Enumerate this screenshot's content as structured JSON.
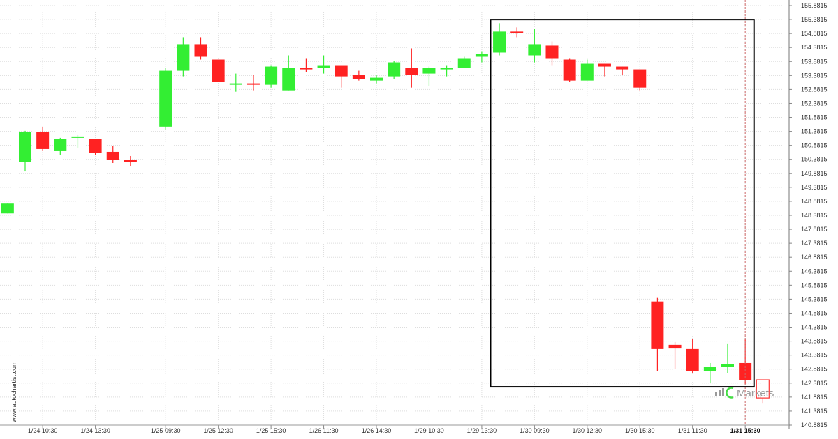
{
  "watermark": "www.autochartist.com",
  "logo": {
    "text": "Markets",
    "color": "#9a9a9a",
    "accent": "#44dd44"
  },
  "colors": {
    "up": "#33ee33",
    "down": "#ff2222",
    "grid": "#dddddd",
    "pattern": "#000000",
    "projection": "#ff3333"
  },
  "chart_data": {
    "type": "candlestick",
    "title": "",
    "xlabel": "",
    "ylabel": "",
    "ylim": [
      140.8815,
      155.8815
    ],
    "y_ticks": [
      "155.8815",
      "155.3815",
      "154.8815",
      "154.3815",
      "153.8815",
      "153.3815",
      "152.8815",
      "152.3815",
      "151.8815",
      "151.3815",
      "150.8815",
      "150.3815",
      "149.8815",
      "149.3815",
      "148.8815",
      "148.3815",
      "147.8815",
      "147.3815",
      "146.8815",
      "146.3815",
      "145.8815",
      "145.3815",
      "144.8815",
      "144.3815",
      "143.8815",
      "143.3815",
      "142.8815",
      "142.3815",
      "141.8815",
      "141.3815",
      "140.8815"
    ],
    "x_ticks": [
      {
        "label": "1/24 10:30",
        "index": 1
      },
      {
        "label": "1/24 13:30",
        "index": 4
      },
      {
        "label": "1/25 09:30",
        "index": 8
      },
      {
        "label": "1/25 12:30",
        "index": 11
      },
      {
        "label": "1/25 15:30",
        "index": 14
      },
      {
        "label": "1/26 11:30",
        "index": 17
      },
      {
        "label": "1/26 14:30",
        "index": 20
      },
      {
        "label": "1/29 10:30",
        "index": 23
      },
      {
        "label": "1/29 13:30",
        "index": 26
      },
      {
        "label": "1/30 09:30",
        "index": 29
      },
      {
        "label": "1/30 12:30",
        "index": 32
      },
      {
        "label": "1/30 15:30",
        "index": 35
      },
      {
        "label": "1/31 11:30",
        "index": 38
      },
      {
        "label": "1/31 15:30",
        "index": 41,
        "active": true
      }
    ],
    "candles": [
      {
        "index": -1,
        "o": 148.45,
        "h": 148.8,
        "l": 148.45,
        "c": 148.8
      },
      {
        "index": 0,
        "o": 150.3,
        "h": 151.4,
        "l": 149.95,
        "c": 151.35
      },
      {
        "index": 1,
        "o": 151.35,
        "h": 151.55,
        "l": 150.7,
        "c": 150.75
      },
      {
        "index": 2,
        "o": 150.7,
        "h": 151.15,
        "l": 150.55,
        "c": 151.1
      },
      {
        "index": 3,
        "o": 151.15,
        "h": 151.25,
        "l": 150.8,
        "c": 151.2
      },
      {
        "index": 4,
        "o": 151.1,
        "h": 151.1,
        "l": 150.55,
        "c": 150.6
      },
      {
        "index": 5,
        "o": 150.65,
        "h": 150.85,
        "l": 150.25,
        "c": 150.35
      },
      {
        "index": 6,
        "o": 150.35,
        "h": 150.5,
        "l": 150.15,
        "c": 150.32
      },
      {
        "index": 8,
        "o": 151.55,
        "h": 153.65,
        "l": 151.45,
        "c": 153.55
      },
      {
        "index": 9,
        "o": 153.55,
        "h": 154.75,
        "l": 153.35,
        "c": 154.5
      },
      {
        "index": 10,
        "o": 154.5,
        "h": 154.75,
        "l": 153.95,
        "c": 154.05
      },
      {
        "index": 11,
        "o": 153.95,
        "h": 153.95,
        "l": 153.15,
        "c": 153.15
      },
      {
        "index": 12,
        "o": 153.05,
        "h": 153.45,
        "l": 152.8,
        "c": 153.1
      },
      {
        "index": 13,
        "o": 153.1,
        "h": 153.4,
        "l": 152.85,
        "c": 153.05
      },
      {
        "index": 14,
        "o": 153.05,
        "h": 153.75,
        "l": 152.95,
        "c": 153.7
      },
      {
        "index": 15,
        "o": 152.85,
        "h": 154.1,
        "l": 152.85,
        "c": 153.65
      },
      {
        "index": 16,
        "o": 153.65,
        "h": 154.0,
        "l": 153.5,
        "c": 153.6
      },
      {
        "index": 17,
        "o": 153.65,
        "h": 154.1,
        "l": 153.45,
        "c": 153.75
      },
      {
        "index": 18,
        "o": 153.75,
        "h": 153.75,
        "l": 152.95,
        "c": 153.35
      },
      {
        "index": 19,
        "o": 153.4,
        "h": 153.55,
        "l": 153.2,
        "c": 153.25
      },
      {
        "index": 20,
        "o": 153.2,
        "h": 153.4,
        "l": 153.1,
        "c": 153.3
      },
      {
        "index": 21,
        "o": 153.35,
        "h": 153.9,
        "l": 153.25,
        "c": 153.85
      },
      {
        "index": 22,
        "o": 153.65,
        "h": 154.35,
        "l": 152.95,
        "c": 153.4
      },
      {
        "index": 23,
        "o": 153.45,
        "h": 153.7,
        "l": 153.0,
        "c": 153.65
      },
      {
        "index": 24,
        "o": 153.6,
        "h": 153.75,
        "l": 153.35,
        "c": 153.65
      },
      {
        "index": 25,
        "o": 153.65,
        "h": 154.05,
        "l": 153.65,
        "c": 154.0
      },
      {
        "index": 26,
        "o": 154.05,
        "h": 154.25,
        "l": 153.85,
        "c": 154.15
      },
      {
        "index": 27,
        "o": 154.2,
        "h": 155.25,
        "l": 154.1,
        "c": 154.95
      },
      {
        "index": 28,
        "o": 154.95,
        "h": 155.1,
        "l": 154.75,
        "c": 154.9
      },
      {
        "index": 29,
        "o": 154.1,
        "h": 155.05,
        "l": 153.85,
        "c": 154.5
      },
      {
        "index": 30,
        "o": 154.45,
        "h": 154.6,
        "l": 153.75,
        "c": 154.0
      },
      {
        "index": 31,
        "o": 153.95,
        "h": 154.0,
        "l": 153.15,
        "c": 153.2
      },
      {
        "index": 32,
        "o": 153.2,
        "h": 153.95,
        "l": 153.2,
        "c": 153.8
      },
      {
        "index": 33,
        "o": 153.8,
        "h": 153.8,
        "l": 153.35,
        "c": 153.7
      },
      {
        "index": 34,
        "o": 153.7,
        "h": 153.7,
        "l": 153.4,
        "c": 153.6
      },
      {
        "index": 35,
        "o": 153.6,
        "h": 153.6,
        "l": 152.85,
        "c": 152.95
      },
      {
        "index": 36,
        "o": 145.3,
        "h": 145.45,
        "l": 142.8,
        "c": 143.6
      },
      {
        "index": 37,
        "o": 143.75,
        "h": 143.85,
        "l": 142.9,
        "c": 143.62
      },
      {
        "index": 38,
        "o": 143.6,
        "h": 143.95,
        "l": 142.75,
        "c": 142.8
      },
      {
        "index": 39,
        "o": 142.8,
        "h": 143.1,
        "l": 142.4,
        "c": 142.95
      },
      {
        "index": 40,
        "o": 142.95,
        "h": 143.8,
        "l": 142.75,
        "c": 143.05
      },
      {
        "index": 41,
        "o": 143.1,
        "h": 143.95,
        "l": 142.35,
        "c": 142.5
      }
    ],
    "pattern_box": {
      "x_start": 26.5,
      "x_end": 41.5,
      "y_top": 155.38,
      "y_bottom": 142.25
    },
    "projection_box": {
      "index": 42,
      "y_top": 142.5,
      "y_bottom": 141.85,
      "wick_low": 141.65
    },
    "current_marker_index": 41
  }
}
